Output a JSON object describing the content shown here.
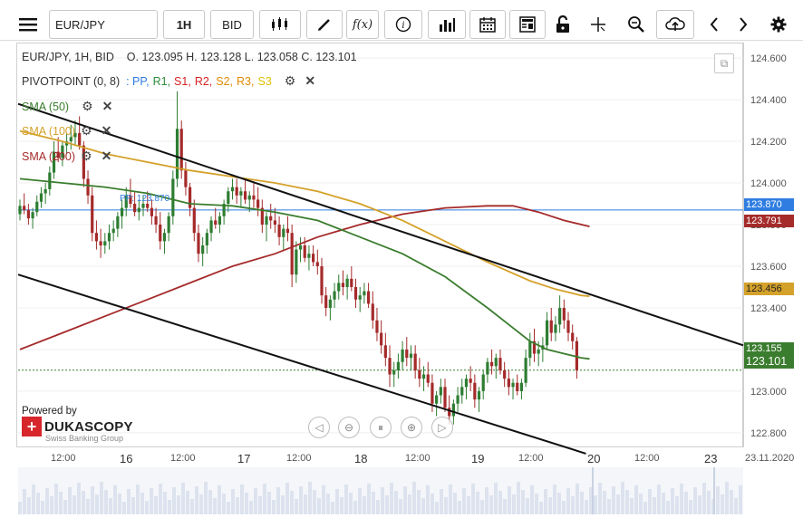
{
  "toolbar": {
    "symbol": "EUR/JPY",
    "timeframe": "1H",
    "price_type": "BID",
    "icons": [
      "menu-icon",
      "candles-icon",
      "draw-icon",
      "fx-icon",
      "info-icon",
      "volume-icon",
      "calendar-icon",
      "news-icon",
      "lock-icon",
      "crosshair-icon",
      "zoom-icon",
      "upload-icon",
      "prev-icon",
      "next-icon",
      "settings-icon"
    ]
  },
  "ohlc_line": {
    "instrument": "EUR/JPY, 1H, BID",
    "open": "O. 123.095",
    "high": "H. 123.128",
    "low": "L. 123.058",
    "close": "C. 123.101"
  },
  "pivot": {
    "label": "PIVOTPOINT (0, 8)",
    "sep": ":",
    "items": [
      {
        "text": "PP,",
        "color": "#2f7de1"
      },
      {
        "text": "R1,",
        "color": "#2e8b3a"
      },
      {
        "text": "S1,",
        "color": "#d62020"
      },
      {
        "text": "R2,",
        "color": "#d62020"
      },
      {
        "text": "S2,",
        "color": "#e08a00"
      },
      {
        "text": "R3,",
        "color": "#e08a00"
      },
      {
        "text": "S3",
        "color": "#e0c000"
      }
    ]
  },
  "indicators": [
    {
      "label": "SMA (50)",
      "color": "#3a7d2e"
    },
    {
      "label": "SMA (100)",
      "color": "#d4a12a"
    },
    {
      "label": "SMA (200)",
      "color": "#a52a2a"
    }
  ],
  "pp_line_label": "PP: 123.870",
  "price_tags": [
    {
      "value": "123.870",
      "color": "#2f7de1"
    },
    {
      "value": "123.791",
      "color": "#a52a2a"
    },
    {
      "value": "123.456",
      "color": "#d4a12a"
    },
    {
      "value": "123.155",
      "color": "#3a7d2e"
    },
    {
      "value": "123.101",
      "color": "#3a7d2e"
    }
  ],
  "powered_by": "Powered by",
  "brand_name": "DUKASCOPY",
  "brand_sub": "Swiss Banking Group",
  "x_ticks": [
    {
      "label": "12:00",
      "day": false
    },
    {
      "label": "16",
      "day": true
    },
    {
      "label": "12:00",
      "day": false
    },
    {
      "label": "17",
      "day": true
    },
    {
      "label": "12:00",
      "day": false
    },
    {
      "label": "18",
      "day": true
    },
    {
      "label": "12:00",
      "day": false
    },
    {
      "label": "19",
      "day": true
    },
    {
      "label": "12:00",
      "day": false
    },
    {
      "label": "20",
      "day": true
    },
    {
      "label": "12:00",
      "day": false
    },
    {
      "label": "23",
      "day": true
    },
    {
      "label": "23.11.2020",
      "day": false
    }
  ],
  "chart_data": {
    "type": "candlestick",
    "title": "",
    "y_ticks": [
      "124.600",
      "124.400",
      "124.200",
      "124.000",
      "123.800",
      "123.600",
      "123.400",
      "123.200",
      "123.000",
      "122.800"
    ],
    "ylim": [
      122.73,
      124.67
    ],
    "x_index_range": [
      0,
      166
    ],
    "candles": [
      [
        123.85,
        123.92,
        123.82,
        123.89
      ],
      [
        123.89,
        123.95,
        123.85,
        123.87
      ],
      [
        123.87,
        123.9,
        123.8,
        123.83
      ],
      [
        123.83,
        123.88,
        123.78,
        123.86
      ],
      [
        123.86,
        123.94,
        123.84,
        123.91
      ],
      [
        123.91,
        123.98,
        123.88,
        123.95
      ],
      [
        123.95,
        124.0,
        123.9,
        123.97
      ],
      [
        123.97,
        124.08,
        123.94,
        124.05
      ],
      [
        124.05,
        124.2,
        124.02,
        124.15
      ],
      [
        124.15,
        124.22,
        124.1,
        124.12
      ],
      [
        124.12,
        124.2,
        124.08,
        124.18
      ],
      [
        124.18,
        124.24,
        124.14,
        124.2
      ],
      [
        124.2,
        124.28,
        124.16,
        124.22
      ],
      [
        124.22,
        124.3,
        124.18,
        124.24
      ],
      [
        124.24,
        124.32,
        124.16,
        124.18
      ],
      [
        124.18,
        124.2,
        123.98,
        124.02
      ],
      [
        124.02,
        124.06,
        123.9,
        123.94
      ],
      [
        123.94,
        123.98,
        123.72,
        123.76
      ],
      [
        123.76,
        123.82,
        123.68,
        123.72
      ],
      [
        123.72,
        123.78,
        123.64,
        123.7
      ],
      [
        123.7,
        123.76,
        123.66,
        123.72
      ],
      [
        123.72,
        123.8,
        123.68,
        123.76
      ],
      [
        123.76,
        123.82,
        123.72,
        123.78
      ],
      [
        123.78,
        123.86,
        123.74,
        123.84
      ],
      [
        123.84,
        123.92,
        123.78,
        123.88
      ],
      [
        123.88,
        123.98,
        123.84,
        123.94
      ],
      [
        123.94,
        124.02,
        123.88,
        123.9
      ],
      [
        123.9,
        123.96,
        123.84,
        123.86
      ],
      [
        123.86,
        123.92,
        123.82,
        123.88
      ],
      [
        123.88,
        123.94,
        123.84,
        123.9
      ],
      [
        123.9,
        123.96,
        123.86,
        123.88
      ],
      [
        123.88,
        123.92,
        123.8,
        123.84
      ],
      [
        123.84,
        123.88,
        123.76,
        123.8
      ],
      [
        123.8,
        123.86,
        123.68,
        123.72
      ],
      [
        123.72,
        123.78,
        123.66,
        123.76
      ],
      [
        123.76,
        123.86,
        123.72,
        123.84
      ],
      [
        123.84,
        124.06,
        123.8,
        124.02
      ],
      [
        124.02,
        124.44,
        123.98,
        124.26
      ],
      [
        124.26,
        124.3,
        124.02,
        124.06
      ],
      [
        124.06,
        124.1,
        123.94,
        123.98
      ],
      [
        123.98,
        124.0,
        123.84,
        123.88
      ],
      [
        123.88,
        123.92,
        123.72,
        123.76
      ],
      [
        123.76,
        123.8,
        123.62,
        123.66
      ],
      [
        123.66,
        123.74,
        123.6,
        123.7
      ],
      [
        123.7,
        123.78,
        123.66,
        123.76
      ],
      [
        123.76,
        123.84,
        123.72,
        123.82
      ],
      [
        123.82,
        123.88,
        123.78,
        123.8
      ],
      [
        123.8,
        123.86,
        123.76,
        123.84
      ],
      [
        123.84,
        123.92,
        123.8,
        123.9
      ],
      [
        123.9,
        123.98,
        123.86,
        123.96
      ],
      [
        123.96,
        124.02,
        123.92,
        123.98
      ],
      [
        123.98,
        124.02,
        123.9,
        123.94
      ],
      [
        123.94,
        123.98,
        123.88,
        123.96
      ],
      [
        123.96,
        124.02,
        123.9,
        123.92
      ],
      [
        123.92,
        123.96,
        123.86,
        123.94
      ],
      [
        123.94,
        124.0,
        123.88,
        123.92
      ],
      [
        123.92,
        123.98,
        123.84,
        123.88
      ],
      [
        123.88,
        123.92,
        123.76,
        123.8
      ],
      [
        123.8,
        123.86,
        123.72,
        123.84
      ],
      [
        123.84,
        123.9,
        123.78,
        123.82
      ],
      [
        123.82,
        123.88,
        123.76,
        123.8
      ],
      [
        123.8,
        123.84,
        123.7,
        123.74
      ],
      [
        123.74,
        123.8,
        123.68,
        123.78
      ],
      [
        123.78,
        123.84,
        123.72,
        123.76
      ],
      [
        123.76,
        123.8,
        123.5,
        123.56
      ],
      [
        123.56,
        123.72,
        123.52,
        123.68
      ],
      [
        123.68,
        123.74,
        123.62,
        123.7
      ],
      [
        123.7,
        123.74,
        123.62,
        123.64
      ],
      [
        123.64,
        123.7,
        123.58,
        123.66
      ],
      [
        123.66,
        123.7,
        123.6,
        123.62
      ],
      [
        123.62,
        123.68,
        123.56,
        123.6
      ],
      [
        123.6,
        123.64,
        123.42,
        123.46
      ],
      [
        123.46,
        123.5,
        123.36,
        123.4
      ],
      [
        123.4,
        123.46,
        123.34,
        123.44
      ],
      [
        123.44,
        123.52,
        123.4,
        123.48
      ],
      [
        123.48,
        123.56,
        123.44,
        123.52
      ],
      [
        123.52,
        123.58,
        123.46,
        123.5
      ],
      [
        123.5,
        123.56,
        123.44,
        123.54
      ],
      [
        123.54,
        123.6,
        123.48,
        123.5
      ],
      [
        123.5,
        123.54,
        123.4,
        123.44
      ],
      [
        123.44,
        123.5,
        123.38,
        123.46
      ],
      [
        123.46,
        123.52,
        123.42,
        123.48
      ],
      [
        123.48,
        123.52,
        123.4,
        123.42
      ],
      [
        123.42,
        123.48,
        123.3,
        123.34
      ],
      [
        123.34,
        123.4,
        123.24,
        123.28
      ],
      [
        123.28,
        123.34,
        123.18,
        123.22
      ],
      [
        123.22,
        123.28,
        123.12,
        123.16
      ],
      [
        123.16,
        123.22,
        123.02,
        123.08
      ],
      [
        123.08,
        123.14,
        123.02,
        123.1
      ],
      [
        123.1,
        123.18,
        123.06,
        123.14
      ],
      [
        123.14,
        123.24,
        123.1,
        123.2
      ],
      [
        123.2,
        123.26,
        123.12,
        123.16
      ],
      [
        123.16,
        123.22,
        123.1,
        123.18
      ],
      [
        123.18,
        123.22,
        123.06,
        123.1
      ],
      [
        123.1,
        123.16,
        123.02,
        123.06
      ],
      [
        123.06,
        123.12,
        123.0,
        123.08
      ],
      [
        123.08,
        123.14,
        123.02,
        123.04
      ],
      [
        123.04,
        123.08,
        122.9,
        122.94
      ],
      [
        122.94,
        123.0,
        122.88,
        122.98
      ],
      [
        122.98,
        123.06,
        122.94,
        123.02
      ],
      [
        123.02,
        123.06,
        122.9,
        122.92
      ],
      [
        122.92,
        122.98,
        122.84,
        122.88
      ],
      [
        122.88,
        122.96,
        122.84,
        122.94
      ],
      [
        122.94,
        123.02,
        122.9,
        122.98
      ],
      [
        122.98,
        123.06,
        122.94,
        123.02
      ],
      [
        123.02,
        123.08,
        122.96,
        123.06
      ],
      [
        123.06,
        123.12,
        123.0,
        123.04
      ],
      [
        123.04,
        123.08,
        122.92,
        122.96
      ],
      [
        122.96,
        123.02,
        122.9,
        123.0
      ],
      [
        123.0,
        123.1,
        122.96,
        123.08
      ],
      [
        123.08,
        123.16,
        123.04,
        123.14
      ],
      [
        123.14,
        123.2,
        123.08,
        123.12
      ],
      [
        123.12,
        123.18,
        123.06,
        123.16
      ],
      [
        123.16,
        123.2,
        123.08,
        123.1
      ],
      [
        123.1,
        123.14,
        123.02,
        123.06
      ],
      [
        123.06,
        123.1,
        122.98,
        123.02
      ],
      [
        123.02,
        123.06,
        122.96,
        123.04
      ],
      [
        123.04,
        123.08,
        122.98,
        123.0
      ],
      [
        123.0,
        123.06,
        122.96,
        123.04
      ],
      [
        123.04,
        123.2,
        123.02,
        123.16
      ],
      [
        123.16,
        123.28,
        123.12,
        123.24
      ],
      [
        123.24,
        123.3,
        123.14,
        123.18
      ],
      [
        123.18,
        123.24,
        123.12,
        123.2
      ],
      [
        123.2,
        123.26,
        123.14,
        123.22
      ],
      [
        123.22,
        123.38,
        123.2,
        123.34
      ],
      [
        123.34,
        123.4,
        123.24,
        123.28
      ],
      [
        123.28,
        123.36,
        123.24,
        123.32
      ],
      [
        123.32,
        123.46,
        123.28,
        123.4
      ],
      [
        123.4,
        123.44,
        123.3,
        123.34
      ],
      [
        123.34,
        123.38,
        123.24,
        123.28
      ],
      [
        123.28,
        123.32,
        123.2,
        123.24
      ],
      [
        123.24,
        123.26,
        123.06,
        123.1
      ]
    ],
    "sma50": [
      [
        0,
        124.02
      ],
      [
        10,
        124.0
      ],
      [
        20,
        123.98
      ],
      [
        30,
        123.95
      ],
      [
        40,
        123.9
      ],
      [
        50,
        123.89
      ],
      [
        60,
        123.86
      ],
      [
        70,
        123.82
      ],
      [
        80,
        123.74
      ],
      [
        90,
        123.66
      ],
      [
        100,
        123.55
      ],
      [
        110,
        123.4
      ],
      [
        115,
        123.32
      ],
      [
        120,
        123.24
      ],
      [
        124,
        123.2
      ],
      [
        128,
        123.18
      ],
      [
        132,
        123.16
      ],
      [
        134,
        123.155
      ]
    ],
    "sma100": [
      [
        0,
        124.25
      ],
      [
        10,
        124.2
      ],
      [
        20,
        124.14
      ],
      [
        30,
        124.1
      ],
      [
        40,
        124.06
      ],
      [
        50,
        124.03
      ],
      [
        60,
        124.0
      ],
      [
        70,
        123.96
      ],
      [
        80,
        123.9
      ],
      [
        90,
        123.82
      ],
      [
        100,
        123.72
      ],
      [
        110,
        123.62
      ],
      [
        120,
        123.53
      ],
      [
        126,
        123.49
      ],
      [
        132,
        123.46
      ],
      [
        134,
        123.456
      ]
    ],
    "sma200": [
      [
        0,
        123.2
      ],
      [
        10,
        123.28
      ],
      [
        20,
        123.36
      ],
      [
        30,
        123.44
      ],
      [
        40,
        123.52
      ],
      [
        50,
        123.6
      ],
      [
        60,
        123.66
      ],
      [
        70,
        123.74
      ],
      [
        80,
        123.8
      ],
      [
        90,
        123.85
      ],
      [
        100,
        123.88
      ],
      [
        110,
        123.89
      ],
      [
        116,
        123.89
      ],
      [
        122,
        123.86
      ],
      [
        128,
        123.82
      ],
      [
        134,
        123.791
      ]
    ],
    "pivot_pp": 123.87,
    "last_price": 123.101,
    "trendlines": [
      {
        "from": [
          0,
          124.38
        ],
        "to": [
          166,
          123.22
        ]
      },
      {
        "from": [
          0,
          123.56
        ],
        "to": [
          130,
          122.7
        ]
      }
    ],
    "grid": true,
    "legend_position": "top-left"
  }
}
